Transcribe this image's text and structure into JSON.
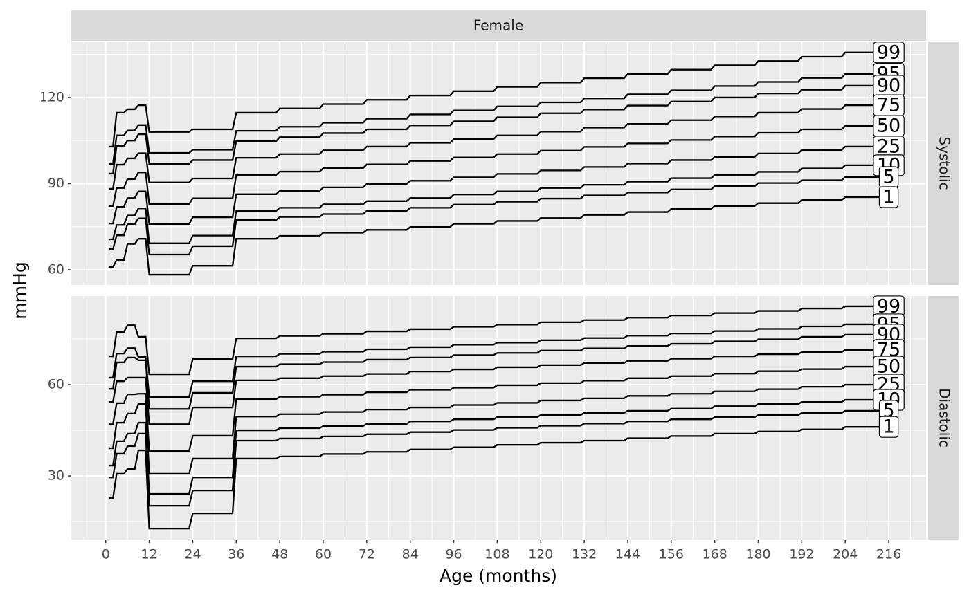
{
  "chart_data": {
    "type": "line",
    "strip_title": "Female",
    "xlabel": "Age (months)",
    "ylabel": "mmHg",
    "color": "#000000",
    "grid": true,
    "minor_grid": true,
    "xlim": [
      -9.5,
      226.3
    ],
    "xticks": [
      0,
      12,
      24,
      36,
      48,
      60,
      72,
      84,
      96,
      108,
      120,
      132,
      144,
      156,
      168,
      180,
      192,
      204,
      216
    ],
    "x": [
      1,
      2,
      3,
      5,
      6,
      8,
      9,
      11,
      12,
      23,
      24,
      35,
      36,
      47,
      48,
      59,
      60,
      71,
      72,
      83,
      84,
      95,
      96,
      107,
      108,
      119,
      120,
      131,
      132,
      143,
      144,
      155,
      156,
      167,
      168,
      179,
      180,
      191,
      192,
      203,
      204,
      216
    ],
    "panels": [
      {
        "label": "Systolic",
        "ylim": [
          54.7,
          139.5
        ],
        "yticks": [
          60,
          90,
          120
        ],
        "series": [
          {
            "name": "99",
            "values": [
              102.9,
              102.9,
              114.7,
              114.7,
              115.9,
              115.9,
              117.3,
              117.3,
              108.0,
              108.0,
              108.9,
              108.9,
              114.7,
              114.7,
              116.2,
              116.2,
              117.7,
              117.7,
              119.2,
              119.2,
              120.7,
              120.7,
              122.2,
              122.2,
              123.7,
              123.7,
              125.2,
              125.2,
              126.7,
              126.7,
              128.2,
              128.2,
              129.7,
              129.7,
              131.2,
              131.2,
              132.7,
              132.7,
              134.2,
              134.2,
              135.7,
              135.7
            ]
          },
          {
            "name": "95",
            "values": [
              96.9,
              96.9,
              106.8,
              106.8,
              108.5,
              108.5,
              110.4,
              110.4,
              100.7,
              100.7,
              101.8,
              101.8,
              108.4,
              108.4,
              109.8,
              109.8,
              111.2,
              111.2,
              112.6,
              112.6,
              114.1,
              114.1,
              115.5,
              115.5,
              116.9,
              116.9,
              118.3,
              118.3,
              119.7,
              119.7,
              121.1,
              121.1,
              122.5,
              122.5,
              124.0,
              124.0,
              125.4,
              125.4,
              126.8,
              126.8,
              128.2,
              128.2
            ]
          },
          {
            "name": "90",
            "values": [
              93.5,
              93.5,
              103.2,
              103.2,
              105.0,
              105.0,
              107.2,
              107.2,
              96.9,
              96.9,
              98.2,
              98.2,
              104.8,
              104.8,
              106.2,
              106.2,
              107.6,
              107.6,
              108.9,
              108.9,
              110.3,
              110.3,
              111.7,
              111.7,
              113.1,
              113.1,
              114.5,
              114.5,
              115.8,
              115.8,
              117.2,
              117.2,
              118.6,
              118.6,
              120.0,
              120.0,
              121.4,
              121.4,
              122.7,
              122.7,
              124.1,
              124.1
            ]
          },
          {
            "name": "75",
            "values": [
              88.2,
              88.2,
              96.6,
              96.6,
              98.8,
              98.8,
              100.6,
              100.6,
              90.4,
              90.4,
              91.8,
              91.8,
              99.0,
              99.0,
              100.3,
              100.3,
              101.6,
              101.6,
              102.9,
              102.9,
              104.2,
              104.2,
              105.5,
              105.5,
              106.8,
              106.8,
              108.1,
              108.1,
              109.5,
              109.5,
              110.8,
              110.8,
              112.1,
              112.1,
              113.4,
              113.4,
              114.7,
              114.7,
              116.0,
              116.0,
              117.3,
              117.3
            ]
          },
          {
            "name": "50",
            "values": [
              82.2,
              82.2,
              88.5,
              88.5,
              91.6,
              91.6,
              93.9,
              93.9,
              82.9,
              82.9,
              84.9,
              84.9,
              93.0,
              93.0,
              94.2,
              94.2,
              95.4,
              95.4,
              96.7,
              96.7,
              97.9,
              97.9,
              99.1,
              99.1,
              100.3,
              100.3,
              101.5,
              101.5,
              102.8,
              102.8,
              104.0,
              104.0,
              105.2,
              105.2,
              106.4,
              106.4,
              107.7,
              107.7,
              108.9,
              108.9,
              110.1,
              110.1
            ]
          },
          {
            "name": "25",
            "values": [
              76.1,
              76.1,
              81.9,
              81.9,
              85.0,
              85.0,
              87.3,
              87.3,
              75.9,
              75.9,
              78.3,
              78.3,
              86.3,
              86.3,
              87.5,
              87.5,
              88.7,
              88.7,
              89.9,
              89.9,
              91.0,
              91.0,
              92.2,
              92.2,
              93.4,
              93.4,
              94.6,
              94.6,
              95.8,
              95.8,
              97.0,
              97.0,
              98.2,
              98.2,
              99.3,
              99.3,
              100.5,
              100.5,
              101.7,
              101.7,
              102.9,
              102.9
            ]
          },
          {
            "name": "10",
            "values": [
              70.6,
              70.6,
              75.6,
              75.6,
              78.9,
              78.9,
              81.4,
              81.4,
              69.2,
              69.2,
              71.9,
              71.9,
              80.5,
              80.5,
              81.6,
              81.6,
              82.8,
              82.8,
              83.9,
              83.9,
              85.0,
              85.0,
              86.2,
              86.2,
              87.3,
              87.3,
              88.5,
              88.5,
              89.6,
              89.6,
              90.7,
              90.7,
              91.9,
              91.9,
              93.0,
              93.0,
              94.1,
              94.1,
              95.3,
              95.3,
              96.4,
              96.4
            ]
          },
          {
            "name": "5",
            "values": [
              67.2,
              67.2,
              72.0,
              72.0,
              75.9,
              75.9,
              77.9,
              77.9,
              65.3,
              65.3,
              68.2,
              68.2,
              77.3,
              77.3,
              78.4,
              78.4,
              79.4,
              79.4,
              80.5,
              80.5,
              81.6,
              81.6,
              82.7,
              82.7,
              83.7,
              83.7,
              84.8,
              84.8,
              85.9,
              85.9,
              86.9,
              86.9,
              88.0,
              88.0,
              89.1,
              89.1,
              90.2,
              90.2,
              91.2,
              91.2,
              92.3,
              92.3
            ]
          },
          {
            "name": "1",
            "values": [
              61.0,
              61.0,
              63.4,
              63.4,
              69.0,
              69.0,
              70.8,
              70.8,
              58.3,
              58.3,
              61.4,
              61.4,
              70.8,
              70.8,
              71.8,
              71.8,
              72.9,
              72.9,
              73.9,
              73.9,
              74.9,
              74.9,
              76.0,
              76.0,
              77.0,
              77.0,
              78.0,
              78.0,
              79.1,
              79.1,
              80.1,
              80.1,
              81.2,
              81.2,
              82.2,
              82.2,
              83.2,
              83.2,
              84.3,
              84.3,
              85.3,
              85.3
            ]
          }
        ]
      },
      {
        "label": "Diastolic",
        "ylim": [
          9.1,
          89.1
        ],
        "yticks": [
          30,
          60
        ],
        "series": [
          {
            "name": "99",
            "values": [
              69.3,
              69.3,
              77.3,
              77.3,
              79.5,
              79.5,
              75.7,
              75.7,
              63.4,
              63.4,
              68.4,
              68.4,
              75.2,
              75.2,
              76.0,
              76.0,
              76.7,
              76.7,
              77.5,
              77.5,
              78.2,
              78.2,
              79.0,
              79.0,
              79.7,
              79.7,
              80.5,
              80.5,
              81.2,
              81.2,
              82.0,
              82.0,
              82.7,
              82.7,
              83.5,
              83.5,
              84.2,
              84.2,
              85.0,
              85.0,
              85.7,
              85.7
            ]
          },
          {
            "name": "95",
            "values": [
              62.3,
              62.3,
              70.2,
              70.2,
              72.0,
              72.0,
              69.1,
              69.1,
              55.9,
              55.9,
              61.1,
              61.1,
              69.3,
              69.3,
              70.1,
              70.1,
              70.8,
              70.8,
              71.6,
              71.6,
              72.3,
              72.3,
              73.1,
              73.1,
              73.8,
              73.8,
              74.6,
              74.6,
              75.3,
              75.3,
              76.1,
              76.1,
              76.8,
              76.8,
              77.6,
              77.6,
              78.3,
              78.3,
              79.1,
              79.1,
              79.8,
              79.8
            ]
          },
          {
            "name": "90",
            "values": [
              58.6,
              58.6,
              67.3,
              67.3,
              68.9,
              68.9,
              68.0,
              68.0,
              52.0,
              52.0,
              57.3,
              57.3,
              65.9,
              65.9,
              66.7,
              66.7,
              67.4,
              67.4,
              68.2,
              68.2,
              68.9,
              68.9,
              69.7,
              69.7,
              70.4,
              70.4,
              71.2,
              71.2,
              71.9,
              71.9,
              72.7,
              72.7,
              73.4,
              73.4,
              74.2,
              74.2,
              74.9,
              74.9,
              75.7,
              75.7,
              76.4,
              76.4
            ]
          },
          {
            "name": "75",
            "values": [
              54.3,
              54.3,
              61.1,
              61.1,
              62.3,
              62.3,
              62.3,
              62.3,
              47.0,
              47.0,
              52.5,
              52.5,
              61.4,
              61.4,
              62.1,
              62.1,
              62.8,
              62.8,
              63.5,
              63.5,
              64.3,
              64.3,
              65.0,
              65.0,
              65.7,
              65.7,
              66.4,
              66.4,
              67.1,
              67.1,
              67.8,
              67.8,
              68.5,
              68.5,
              69.3,
              69.3,
              70.0,
              70.0,
              70.7,
              70.7,
              71.4,
              71.4
            ]
          },
          {
            "name": "50",
            "values": [
              47.0,
              47.0,
              53.9,
              53.9,
              56.8,
              56.8,
              57.0,
              57.0,
              38.2,
              38.2,
              43.2,
              43.2,
              55.2,
              55.2,
              56.0,
              56.0,
              56.7,
              56.7,
              57.5,
              57.5,
              58.3,
              58.3,
              59.0,
              59.0,
              59.8,
              59.8,
              60.5,
              60.5,
              61.3,
              61.3,
              62.1,
              62.1,
              62.8,
              62.8,
              63.6,
              63.6,
              64.4,
              64.4,
              65.1,
              65.1,
              65.9,
              65.9
            ]
          },
          {
            "name": "25",
            "values": [
              39.1,
              39.1,
              47.5,
              47.5,
              50.5,
              50.5,
              53.6,
              53.6,
              30.7,
              30.7,
              35.7,
              35.7,
              49.5,
              49.5,
              50.3,
              50.3,
              51.0,
              51.0,
              51.8,
              51.8,
              52.5,
              52.5,
              53.3,
              53.3,
              54.0,
              54.0,
              54.8,
              54.8,
              55.5,
              55.5,
              56.3,
              56.3,
              57.0,
              57.0,
              57.8,
              57.8,
              58.5,
              58.5,
              59.3,
              59.3,
              60.0,
              60.0
            ]
          },
          {
            "name": "10",
            "values": [
              33.4,
              33.4,
              41.4,
              41.4,
              43.9,
              43.9,
              47.5,
              47.5,
              24.1,
              24.1,
              29.5,
              29.5,
              45.0,
              45.0,
              45.7,
              45.7,
              46.4,
              46.4,
              47.1,
              47.1,
              47.9,
              47.9,
              48.6,
              48.6,
              49.3,
              49.3,
              50.0,
              50.0,
              50.7,
              50.7,
              51.4,
              51.4,
              52.1,
              52.1,
              52.9,
              52.9,
              53.6,
              53.6,
              54.3,
              54.3,
              55.0,
              55.0
            ]
          },
          {
            "name": "5",
            "values": [
              29.5,
              29.5,
              37.3,
              37.3,
              39.8,
              39.8,
              43.9,
              43.9,
              20.2,
              20.2,
              25.2,
              25.2,
              41.6,
              41.6,
              42.3,
              42.3,
              43.0,
              43.0,
              43.7,
              43.7,
              44.4,
              44.4,
              45.1,
              45.1,
              45.8,
              45.8,
              46.5,
              46.5,
              47.2,
              47.2,
              47.9,
              47.9,
              48.6,
              48.6,
              49.3,
              49.3,
              50.0,
              50.0,
              50.7,
              50.7,
              51.4,
              51.4
            ]
          },
          {
            "name": "1",
            "values": [
              22.7,
              22.7,
              30.7,
              30.7,
              32.3,
              32.3,
              38.4,
              38.4,
              12.7,
              12.7,
              17.7,
              17.7,
              35.7,
              35.7,
              36.4,
              36.4,
              37.2,
              37.2,
              37.9,
              37.9,
              38.7,
              38.7,
              39.4,
              39.4,
              40.2,
              40.2,
              40.9,
              40.9,
              41.6,
              41.6,
              42.4,
              42.4,
              43.1,
              43.1,
              43.9,
              43.9,
              44.6,
              44.6,
              45.3,
              45.3,
              46.1,
              46.1
            ]
          }
        ]
      }
    ]
  }
}
